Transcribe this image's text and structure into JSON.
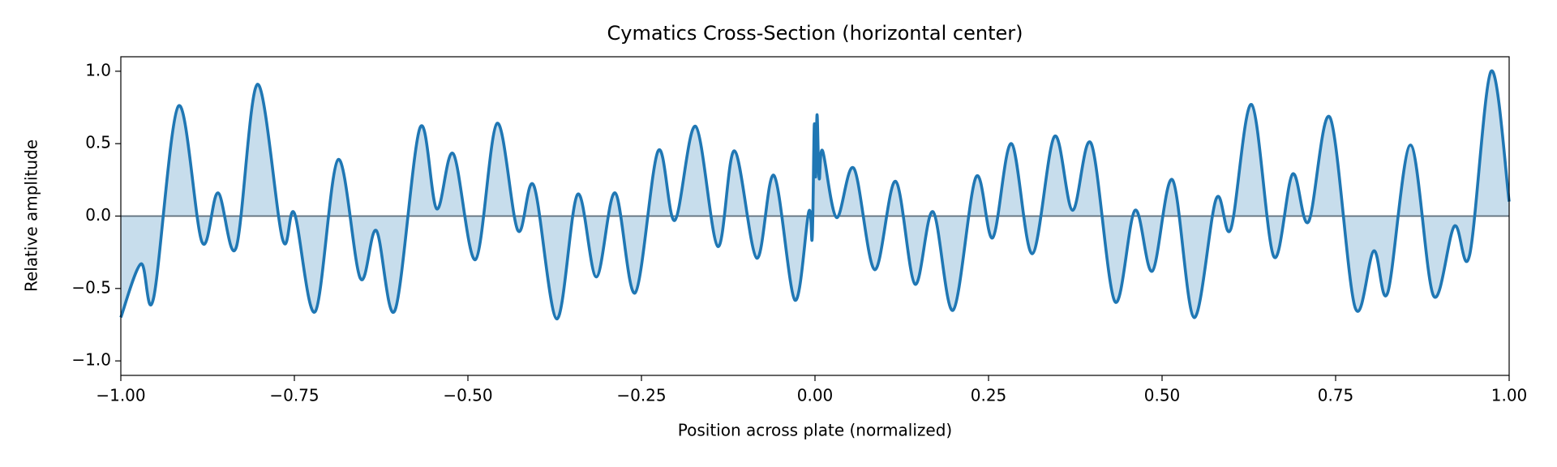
{
  "chart_data": {
    "type": "line",
    "title": "Cymatics Cross-Section (horizontal center)",
    "x_label": "Position across plate (normalized)",
    "y_label": "Relative amplitude",
    "color": "#1f77b4",
    "fill": true,
    "xlim": [
      -1,
      1
    ],
    "ylim": [
      -1.1,
      1.1
    ],
    "xticks": [
      {
        "value": -1,
        "label": "−1.00"
      },
      {
        "value": -0.75,
        "label": "−0.75"
      },
      {
        "value": -0.5,
        "label": "−0.50"
      },
      {
        "value": -0.25,
        "label": "−0.25"
      },
      {
        "value": 0,
        "label": "0.00"
      },
      {
        "value": 0.25,
        "label": "0.25"
      },
      {
        "value": 0.5,
        "label": "0.50"
      },
      {
        "value": 0.75,
        "label": "0.75"
      },
      {
        "value": 1,
        "label": "1.00"
      }
    ],
    "yticks": [
      {
        "value": -1,
        "label": "−1.0"
      },
      {
        "value": -0.5,
        "label": "−0.5"
      },
      {
        "value": 0,
        "label": "0.0"
      },
      {
        "value": 0.5,
        "label": "0.5"
      },
      {
        "value": 1,
        "label": "1.0"
      }
    ],
    "x": [
      -1,
      -0.971,
      -0.953,
      -0.917,
      -0.883,
      -0.86,
      -0.834,
      -0.803,
      -0.767,
      -0.75,
      -0.72,
      -0.687,
      -0.655,
      -0.632,
      -0.605,
      -0.569,
      -0.545,
      -0.521,
      -0.489,
      -0.458,
      -0.428,
      -0.405,
      -0.372,
      -0.342,
      -0.315,
      -0.288,
      -0.259,
      -0.226,
      -0.202,
      -0.172,
      -0.14,
      -0.116,
      -0.084,
      -0.059,
      -0.029,
      -0.009,
      -0.004,
      -0.001,
      0.001,
      0.003,
      0.006,
      0.011,
      0.031,
      0.056,
      0.086,
      0.116,
      0.144,
      0.17,
      0.199,
      0.232,
      0.256,
      0.283,
      0.313,
      0.345,
      0.371,
      0.398,
      0.432,
      0.461,
      0.486,
      0.515,
      0.546,
      0.578,
      0.599,
      0.629,
      0.661,
      0.688,
      0.711,
      0.742,
      0.778,
      0.805,
      0.825,
      0.858,
      0.891,
      0.921,
      0.943,
      0.974,
      1
    ],
    "values": [
      -0.7,
      -0.33,
      -0.57,
      0.76,
      -0.18,
      0.16,
      -0.22,
      0.91,
      -0.16,
      0.02,
      -0.66,
      0.39,
      -0.43,
      -0.1,
      -0.65,
      0.61,
      0.05,
      0.43,
      -0.3,
      0.64,
      -0.1,
      0.21,
      -0.71,
      0.15,
      -0.42,
      0.16,
      -0.53,
      0.45,
      -0.03,
      0.62,
      -0.21,
      0.45,
      -0.29,
      0.28,
      -0.58,
      0.03,
      -0.15,
      0.63,
      0.27,
      0.7,
      0.26,
      0.45,
      -0.01,
      0.33,
      -0.37,
      0.24,
      -0.47,
      0.03,
      -0.65,
      0.27,
      -0.15,
      0.5,
      -0.26,
      0.55,
      0.04,
      0.5,
      -0.59,
      0.04,
      -0.38,
      0.25,
      -0.7,
      0.12,
      -0.09,
      0.77,
      -0.28,
      0.29,
      -0.04,
      0.68,
      -0.63,
      -0.24,
      -0.53,
      0.49,
      -0.55,
      -0.07,
      -0.27,
      1.0,
      0.1
    ]
  }
}
